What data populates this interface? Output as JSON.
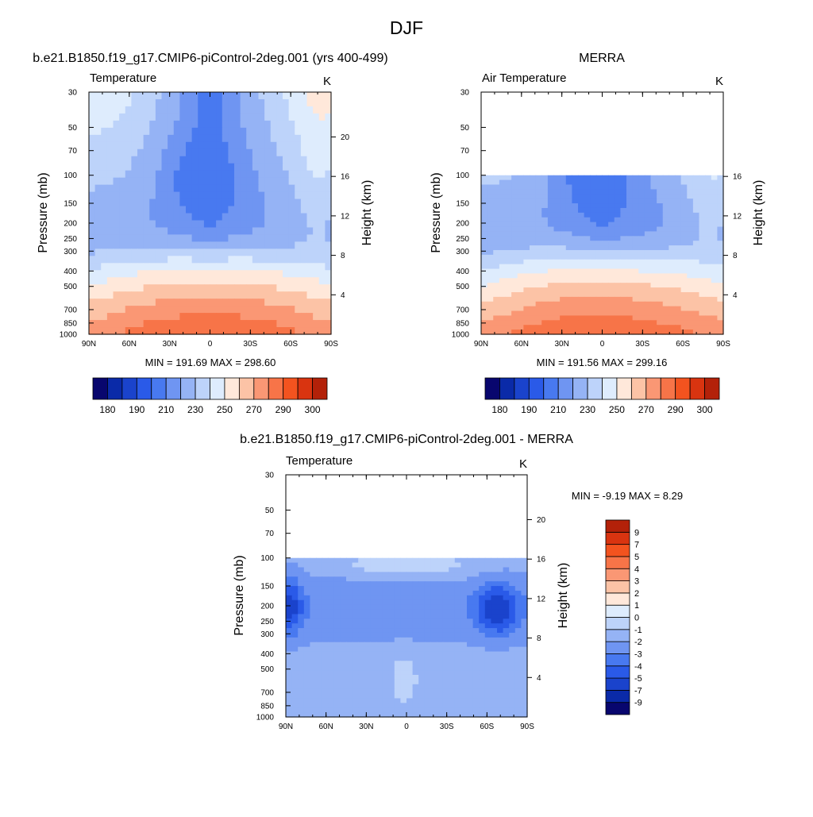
{
  "figure": {
    "title": "DJF"
  },
  "chart_data": [
    {
      "type": "heatmap",
      "panel": "model",
      "title": "b.e21.B1850.f19_g17.CMIP6-piControl-2deg.001 (yrs 400-499)",
      "variable_label": "Temperature",
      "units_label": "K",
      "xlabel": "",
      "ylabel": "Pressure (mb)",
      "ylabel_right": "Height (km)",
      "x_ticks": [
        "90N",
        "60N",
        "30N",
        "0",
        "30S",
        "60S",
        "90S"
      ],
      "x_values": [
        90,
        60,
        30,
        0,
        -30,
        -60,
        -90
      ],
      "y_ticks": [
        "30",
        "50",
        "70",
        "100",
        "150",
        "200",
        "250",
        "300",
        "400",
        "500",
        "700",
        "850",
        "1000"
      ],
      "y_values": [
        30,
        50,
        70,
        100,
        150,
        200,
        250,
        300,
        400,
        500,
        700,
        850,
        1000
      ],
      "height_ticks": [
        "20",
        "16",
        "12",
        "8",
        "4"
      ],
      "height_values": [
        20,
        16,
        12,
        8,
        4
      ],
      "ylim": [
        1000,
        30
      ],
      "data_top_mb": 30,
      "stats_text": "MIN = 191.69  MAX = 298.60",
      "min": 191.69,
      "max": 298.6,
      "colorbar": {
        "orientation": "horizontal",
        "levels": [
          180,
          185,
          190,
          200,
          210,
          220,
          230,
          240,
          250,
          260,
          270,
          280,
          290,
          295,
          300
        ],
        "labels": [
          "180",
          "190",
          "210",
          "230",
          "250",
          "270",
          "290",
          "300"
        ],
        "colors": [
          "#08066e",
          "#0a2aa8",
          "#1a43cc",
          "#2a5ae8",
          "#4879f0",
          "#6f95f2",
          "#95b3f5",
          "#bdd3fa",
          "#deecfd",
          "#ffe8da",
          "#fcc3a6",
          "#fa9774",
          "#f77448",
          "#f3531f",
          "#d93410",
          "#b32109"
        ]
      }
    },
    {
      "type": "heatmap",
      "panel": "obs",
      "title": "MERRA",
      "variable_label": "Air Temperature",
      "units_label": "K",
      "xlabel": "",
      "ylabel": "Pressure (mb)",
      "ylabel_right": "Height (km)",
      "x_ticks": [
        "90N",
        "60N",
        "30N",
        "0",
        "30S",
        "60S",
        "90S"
      ],
      "x_values": [
        90,
        60,
        30,
        0,
        -30,
        -60,
        -90
      ],
      "y_ticks": [
        "30",
        "50",
        "70",
        "100",
        "150",
        "200",
        "250",
        "300",
        "400",
        "500",
        "700",
        "850",
        "1000"
      ],
      "y_values": [
        30,
        50,
        70,
        100,
        150,
        200,
        250,
        300,
        400,
        500,
        700,
        850,
        1000
      ],
      "height_ticks": [
        "16",
        "12",
        "8",
        "4"
      ],
      "height_values": [
        16,
        12,
        8,
        4
      ],
      "ylim": [
        1000,
        30
      ],
      "data_top_mb": 100,
      "stats_text": "MIN = 191.56  MAX = 299.16",
      "min": 191.56,
      "max": 299.16,
      "colorbar": {
        "orientation": "horizontal",
        "levels": [
          180,
          185,
          190,
          200,
          210,
          220,
          230,
          240,
          250,
          260,
          270,
          280,
          290,
          295,
          300
        ],
        "labels": [
          "180",
          "190",
          "210",
          "230",
          "250",
          "270",
          "290",
          "300"
        ],
        "colors": [
          "#08066e",
          "#0a2aa8",
          "#1a43cc",
          "#2a5ae8",
          "#4879f0",
          "#6f95f2",
          "#95b3f5",
          "#bdd3fa",
          "#deecfd",
          "#ffe8da",
          "#fcc3a6",
          "#fa9774",
          "#f77448",
          "#f3531f",
          "#d93410",
          "#b32109"
        ]
      }
    },
    {
      "type": "heatmap",
      "panel": "diff",
      "title": "b.e21.B1850.f19_g17.CMIP6-piControl-2deg.001 - MERRA",
      "variable_label": "Temperature",
      "units_label": "K",
      "xlabel": "",
      "ylabel": "Pressure (mb)",
      "ylabel_right": "Height (km)",
      "x_ticks": [
        "90N",
        "60N",
        "30N",
        "0",
        "30S",
        "60S",
        "90S"
      ],
      "x_values": [
        90,
        60,
        30,
        0,
        -30,
        -60,
        -90
      ],
      "y_ticks": [
        "30",
        "50",
        "70",
        "100",
        "150",
        "200",
        "250",
        "300",
        "400",
        "500",
        "700",
        "850",
        "1000"
      ],
      "y_values": [
        30,
        50,
        70,
        100,
        150,
        200,
        250,
        300,
        400,
        500,
        700,
        850,
        1000
      ],
      "height_ticks": [
        "20",
        "16",
        "12",
        "8",
        "4"
      ],
      "height_values": [
        20,
        16,
        12,
        8,
        4
      ],
      "ylim": [
        1000,
        30
      ],
      "data_top_mb": 100,
      "stats_text": "MIN =  -9.19  MAX =   8.29",
      "min": -9.19,
      "max": 8.29,
      "colorbar": {
        "orientation": "vertical",
        "levels": [
          -9,
          -7,
          -5,
          -4,
          -3,
          -2,
          -1,
          0,
          1,
          2,
          3,
          4,
          5,
          7,
          9
        ],
        "labels": [
          "-9",
          "-7",
          "-5",
          "-4",
          "-3",
          "-2",
          "-1",
          "0",
          "1",
          "2",
          "3",
          "4",
          "5",
          "7",
          "9"
        ],
        "colors": [
          "#08066e",
          "#0a2aa8",
          "#1a43cc",
          "#2a5ae8",
          "#4879f0",
          "#6f95f2",
          "#95b3f5",
          "#bdd3fa",
          "#deecfd",
          "#ffe8da",
          "#fcc3a6",
          "#fa9774",
          "#f77448",
          "#f3531f",
          "#d93410",
          "#b32109"
        ]
      }
    }
  ]
}
